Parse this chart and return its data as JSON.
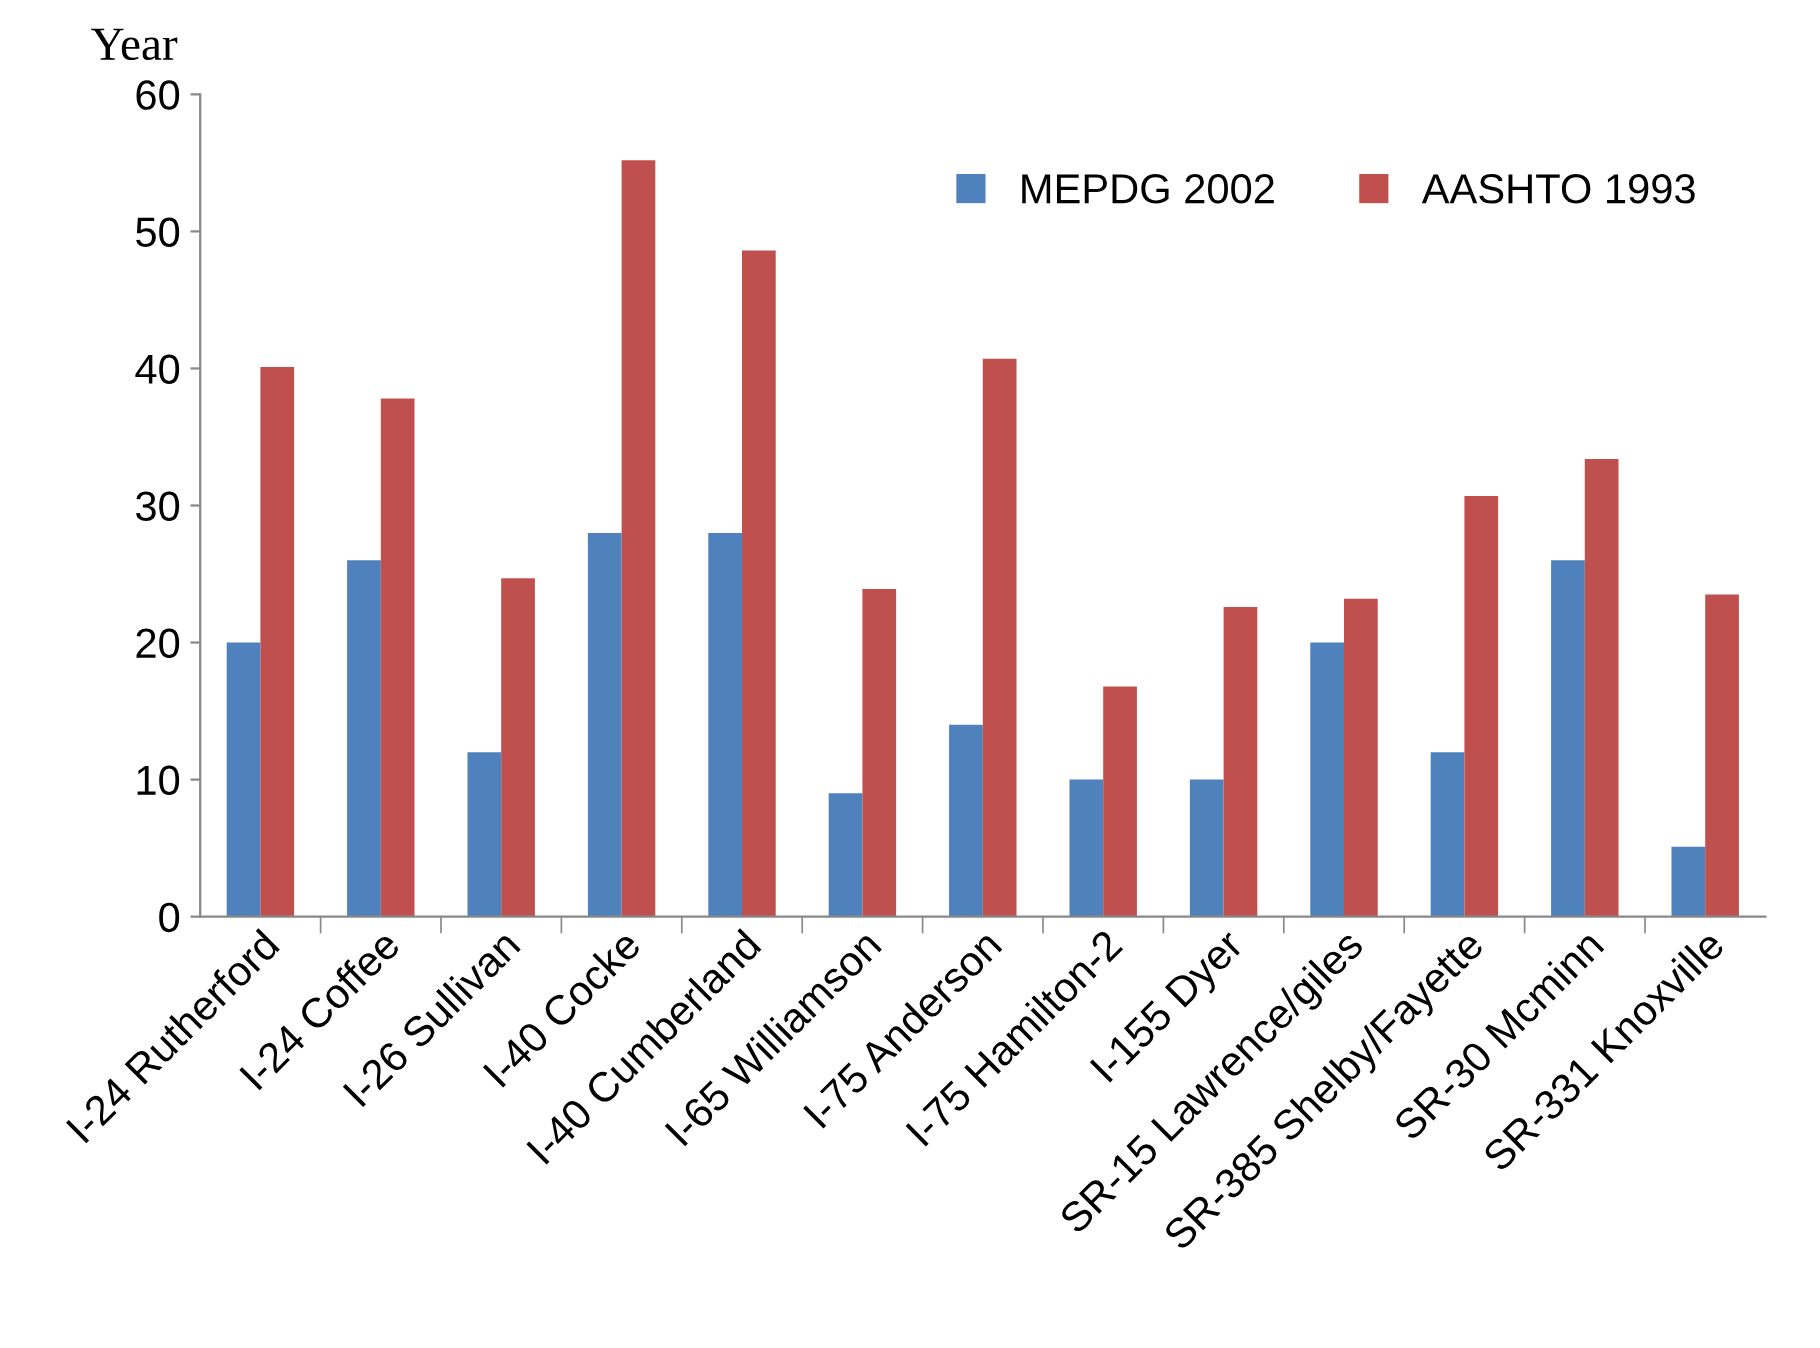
{
  "chart_data": {
    "type": "bar",
    "ylabel": "Year",
    "categories": [
      "I-24 Rutherford",
      "I-24 Coffee",
      "I-26 Sullivan",
      "I-40 Cocke",
      "I-40 Cumberland",
      "I-65 Williamson",
      "I-75 Anderson",
      "I-75 Hamilton-2",
      "I-155 Dyer",
      "SR-15 Lawrence/giles",
      "SR-385 Shelby/Fayette",
      "SR-30 Mcminn",
      "SR-331 Knoxville"
    ],
    "series": [
      {
        "name": "MEPDG 2002",
        "color": "#4f81bd",
        "values": [
          20,
          26,
          12,
          28,
          28,
          9,
          14,
          10,
          10,
          20,
          12,
          26,
          5.1
        ]
      },
      {
        "name": "AASHTO 1993",
        "color": "#c0504d",
        "values": [
          40.1,
          37.8,
          24.7,
          55.2,
          48.6,
          23.9,
          40.7,
          16.8,
          22.6,
          23.2,
          30.7,
          33.4,
          23.5
        ]
      }
    ],
    "ylim": [
      0,
      60
    ],
    "yticks": [
      0,
      10,
      20,
      30,
      40,
      50,
      60
    ],
    "grid": false,
    "legend": "top right"
  }
}
